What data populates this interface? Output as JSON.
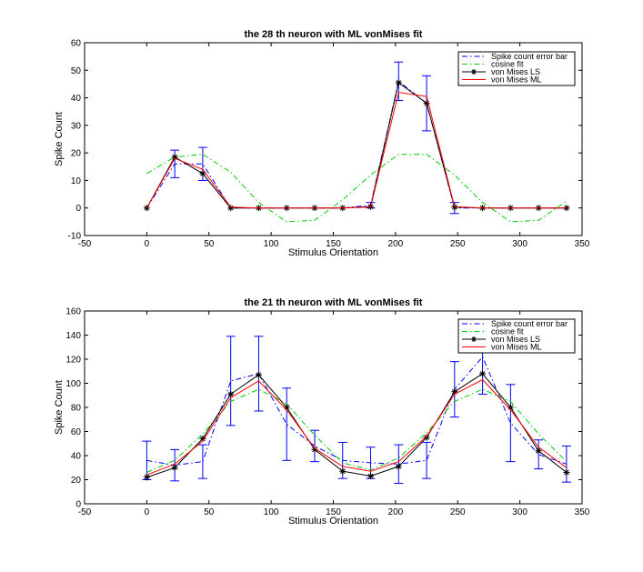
{
  "chart_data": [
    {
      "type": "line",
      "title": "the 28 th neuron with ML vonMises fit",
      "xlabel": "Stimulus Orientation",
      "ylabel": "Spike Count",
      "xlim": [
        -50,
        350
      ],
      "ylim": [
        -10,
        60
      ],
      "xticks": [
        -50,
        0,
        50,
        100,
        150,
        200,
        250,
        300,
        350
      ],
      "yticks": [
        -10,
        0,
        10,
        20,
        30,
        40,
        50,
        60
      ],
      "grid": false,
      "legend_position": "top-right",
      "x": [
        0,
        22.5,
        45,
        67.5,
        90,
        112.5,
        135,
        157.5,
        180,
        202.5,
        225,
        247.5,
        270,
        292.5,
        315,
        337.5
      ],
      "series": [
        {
          "name": "Spike count error bar",
          "color": "#0000ff",
          "style": "dashdot",
          "values": [
            0,
            16,
            16,
            0,
            0,
            0,
            0,
            0,
            1,
            46,
            38,
            0,
            0,
            0,
            0,
            0
          ],
          "error": [
            0,
            5,
            6,
            0,
            0,
            0,
            0,
            0,
            1,
            7,
            10,
            2,
            0,
            0,
            0,
            0
          ]
        },
        {
          "name": "cosine fit",
          "color": "#00cc00",
          "style": "dashdot",
          "values": [
            12.5,
            18.5,
            19.5,
            13,
            2,
            -5,
            -4.5,
            3,
            12,
            19.5,
            19.5,
            12,
            2,
            -5,
            -4.5,
            2.5
          ]
        },
        {
          "name": "von Mises LS",
          "color": "#000000",
          "style": "solid-star",
          "values": [
            0,
            18.5,
            12.5,
            0,
            0,
            0,
            0,
            0,
            0.5,
            45.5,
            38,
            0.3,
            0,
            0,
            0,
            0
          ]
        },
        {
          "name": "von Mises ML",
          "color": "#ff0000",
          "style": "solid",
          "values": [
            0,
            18,
            14,
            0.3,
            0,
            0,
            0,
            0,
            0.3,
            42,
            40.5,
            0.5,
            0,
            0,
            0,
            0
          ]
        }
      ]
    },
    {
      "type": "line",
      "title": "the 21 th neuron with ML vonMises fit",
      "xlabel": "Stimulus Orientation",
      "ylabel": "Spike Count",
      "xlim": [
        -50,
        350
      ],
      "ylim": [
        0,
        160
      ],
      "xticks": [
        -50,
        0,
        50,
        100,
        150,
        200,
        250,
        300,
        350
      ],
      "yticks": [
        0,
        20,
        40,
        60,
        80,
        100,
        120,
        140,
        160
      ],
      "grid": false,
      "legend_position": "top-right",
      "x": [
        0,
        22.5,
        45,
        67.5,
        90,
        112.5,
        135,
        157.5,
        180,
        202.5,
        225,
        247.5,
        270,
        292.5,
        315,
        337.5
      ],
      "series": [
        {
          "name": "Spike count error bar",
          "color": "#0000ff",
          "style": "dashdot",
          "values": [
            36,
            32,
            35,
            102,
            108,
            66,
            48,
            36,
            34,
            33,
            36,
            95,
            122,
            67,
            41,
            33
          ],
          "error": [
            16,
            13,
            14,
            37,
            31,
            30,
            13,
            15,
            13,
            16,
            15,
            23,
            31,
            32,
            12,
            15
          ]
        },
        {
          "name": "cosine fit",
          "color": "#00cc00",
          "style": "dashdot",
          "values": [
            26,
            36,
            58,
            85,
            95,
            83,
            57,
            34,
            28,
            38,
            59,
            85,
            95,
            85,
            58,
            35
          ]
        },
        {
          "name": "von Mises LS",
          "color": "#000000",
          "style": "solid-star",
          "values": [
            22,
            30,
            54,
            91,
            107,
            80,
            45,
            27,
            23,
            31,
            55,
            93,
            108,
            80,
            44,
            26
          ]
        },
        {
          "name": "von Mises ML",
          "color": "#ff0000",
          "style": "solid",
          "values": [
            24,
            33,
            52,
            88,
            102,
            78,
            46,
            31,
            27,
            35,
            56,
            91,
            103,
            78,
            47,
            30
          ]
        }
      ]
    }
  ]
}
